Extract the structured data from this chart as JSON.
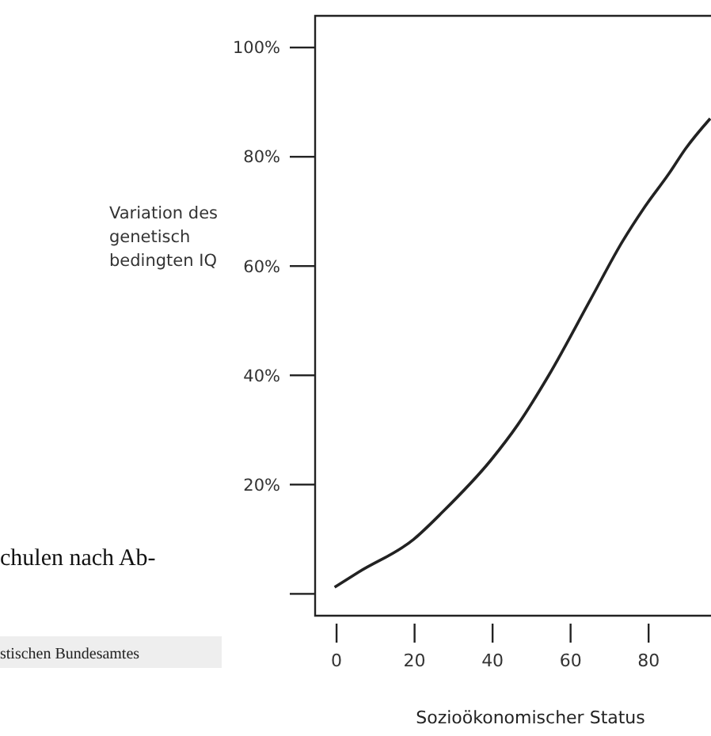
{
  "chart_data": {
    "type": "line",
    "xlabel": "Sozioökonomischer Status",
    "ylabel": "Variation des genetisch bedingten IQ",
    "x": [
      -0.5,
      5.7,
      19.8,
      27.2,
      39.6,
      46.5,
      54.4,
      65.2,
      73.3,
      78.7,
      85.3,
      89.5,
      95.8
    ],
    "series": [
      {
        "color": "#222222",
        "values": [
          1.2,
          4,
          10,
          15,
          24.5,
          31,
          40,
          54,
          64.5,
          70.5,
          77,
          81.5,
          87
        ]
      }
    ],
    "xlim": [
      -5.5,
      96
    ],
    "ylim": [
      -4,
      105.8
    ],
    "xticks": [
      0,
      20,
      40,
      60,
      80
    ],
    "yticks": [
      {
        "value": 0,
        "label": null
      },
      {
        "value": 20,
        "label": "20%"
      },
      {
        "value": 40,
        "label": "40%"
      },
      {
        "value": 60,
        "label": "60%"
      },
      {
        "value": 80,
        "label": "80%"
      },
      {
        "value": 100,
        "label": "100%"
      }
    ],
    "grid": false,
    "marker": "none",
    "line_style": "solid",
    "annotations": [
      "chulen nach Ab-",
      "stischen Bundesamtes"
    ]
  }
}
